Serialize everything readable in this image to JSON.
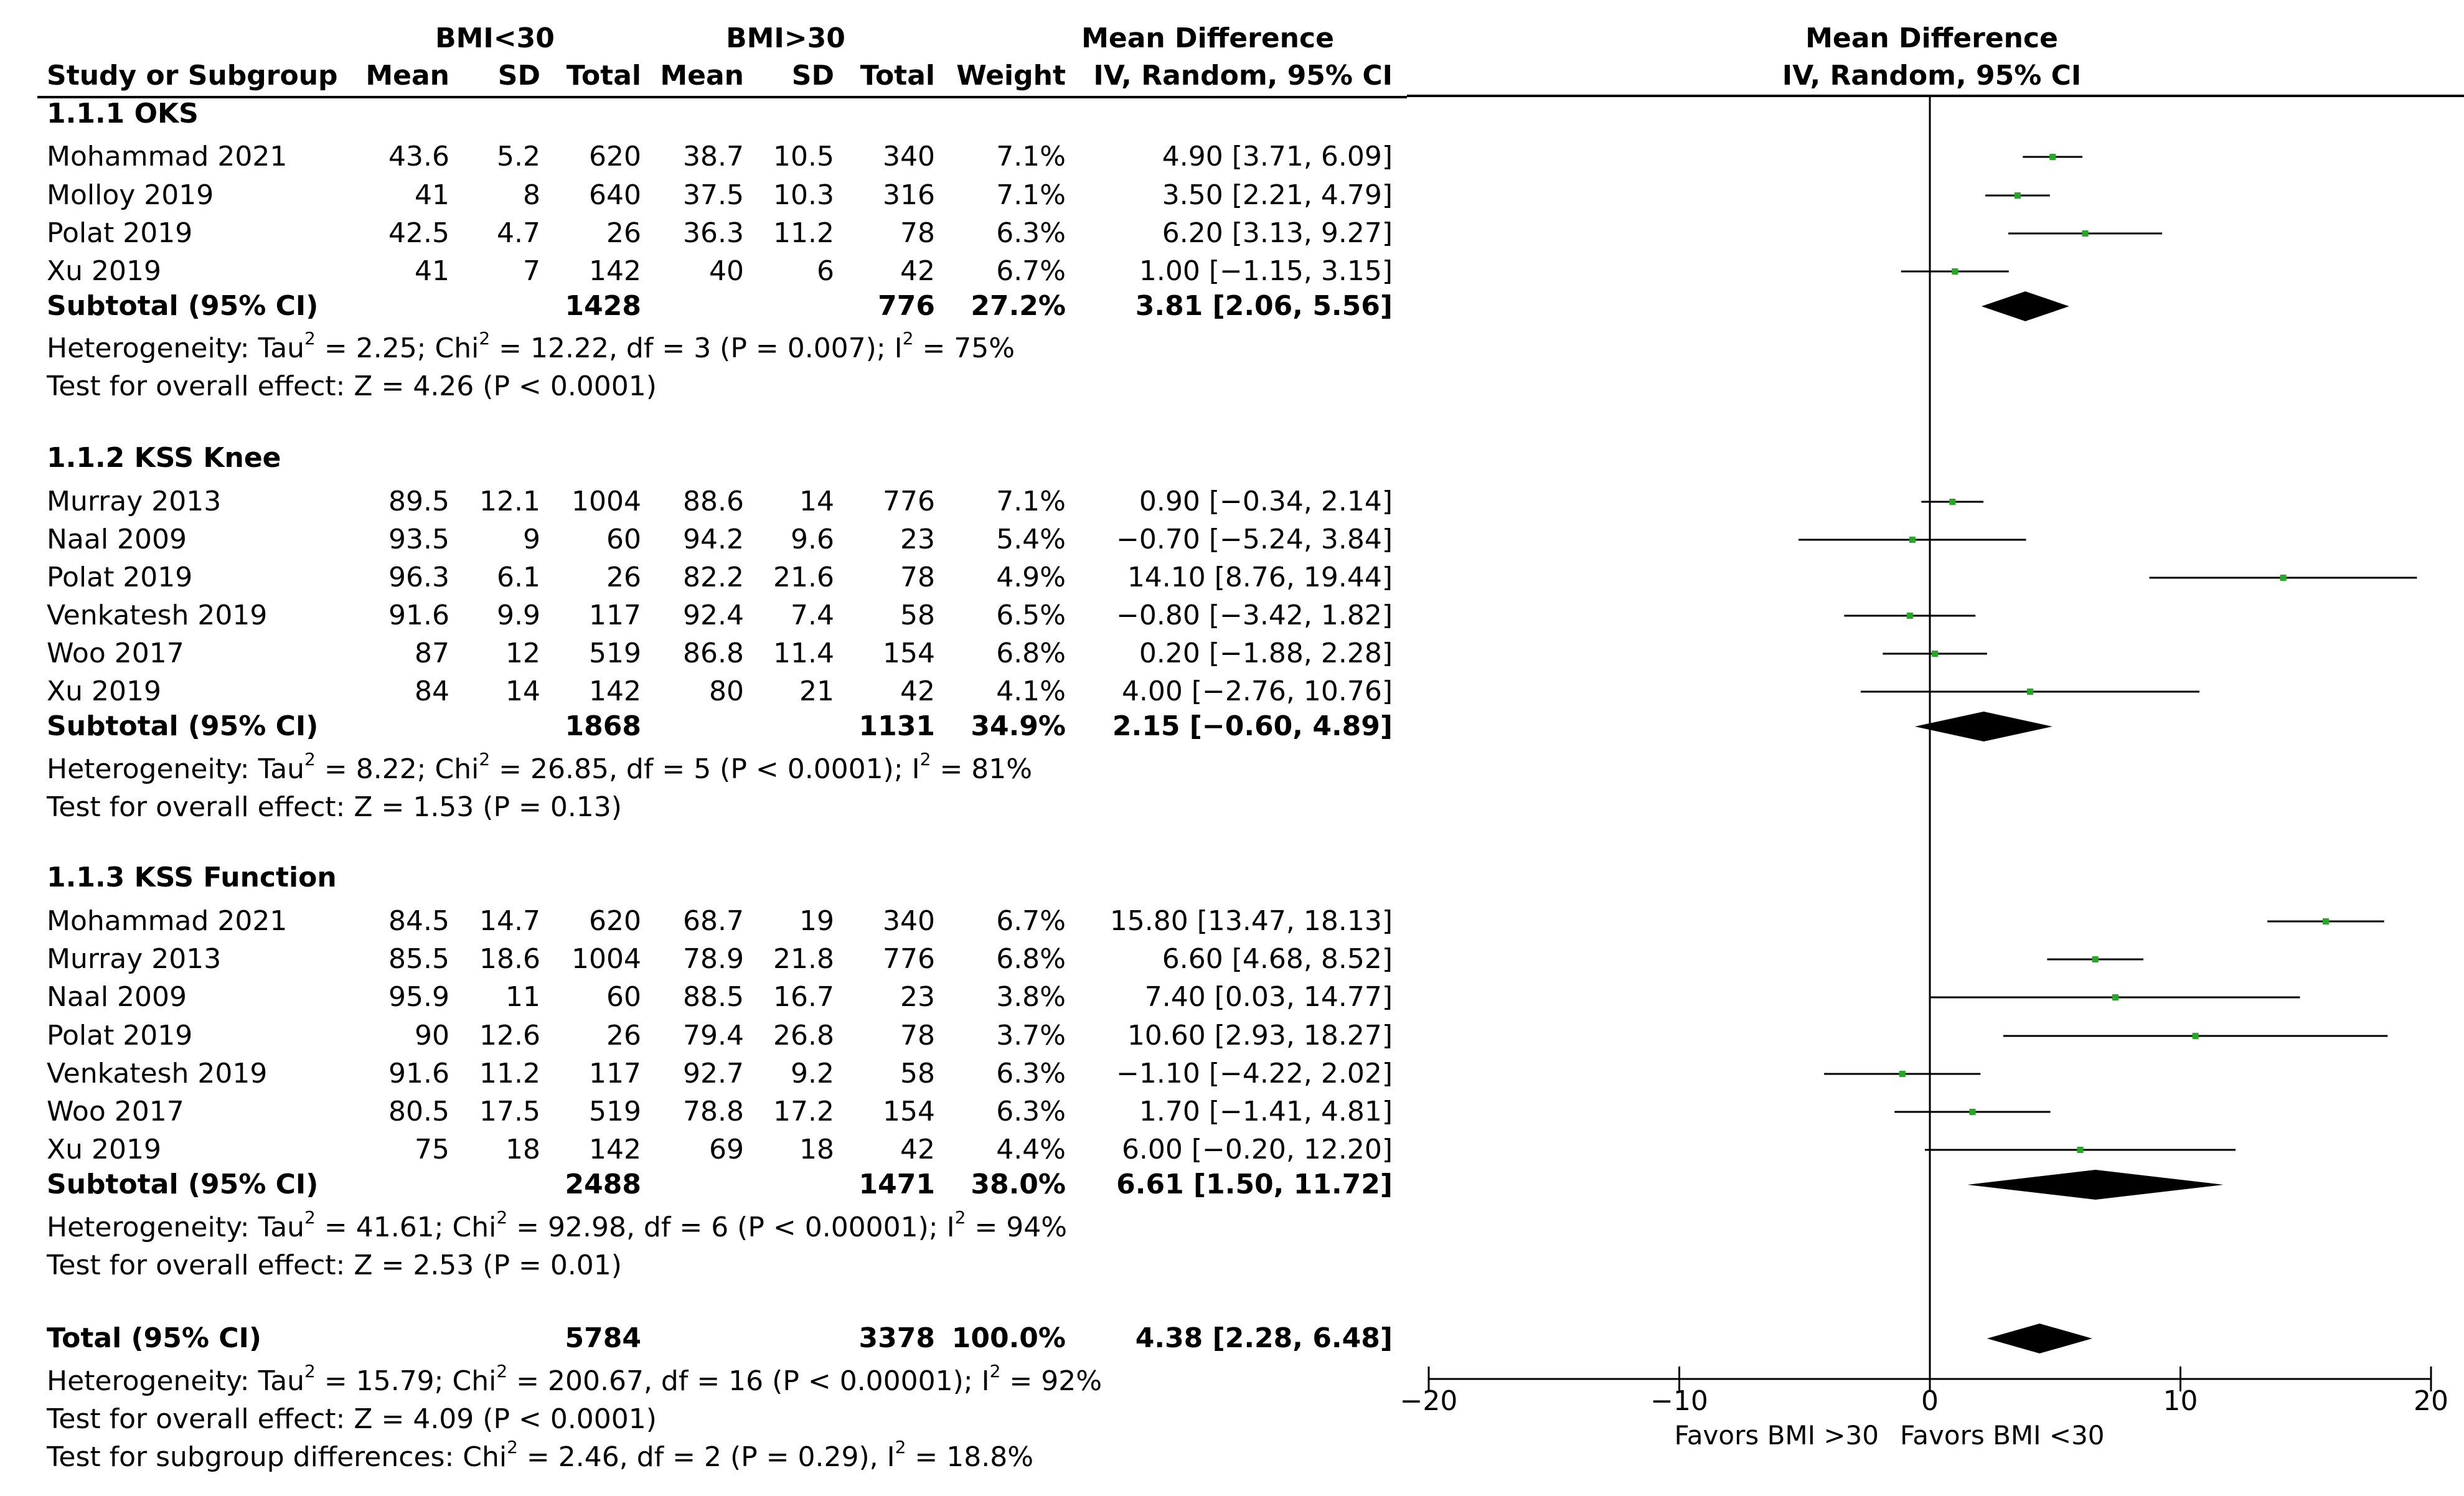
{
  "headers": {
    "group1": "BMI<30",
    "group2": "BMI>30",
    "study": "Study or Subgroup",
    "mean1": "Mean",
    "sd1": "SD",
    "total1": "Total",
    "mean2": "Mean",
    "sd2": "SD",
    "total2": "Total",
    "weight": "Weight",
    "md_title": "Mean Difference",
    "md_method": "IV, Random, 95% CI",
    "plot_title": "Mean Difference",
    "plot_method": "IV, Random, 95% CI"
  },
  "subgroups": [
    {
      "title": "1.1.1 OKS",
      "studies": [
        {
          "name": "Mohammad 2021",
          "mean1": "43.6",
          "sd1": "5.2",
          "n1": "620",
          "mean2": "38.7",
          "sd2": "10.5",
          "n2": "340",
          "weight": "7.1%",
          "ci": "4.90 [3.71, 6.09]"
        },
        {
          "name": "Molloy 2019",
          "mean1": "41",
          "sd1": "8",
          "n1": "640",
          "mean2": "37.5",
          "sd2": "10.3",
          "n2": "316",
          "weight": "7.1%",
          "ci": "3.50 [2.21, 4.79]"
        },
        {
          "name": "Polat 2019",
          "mean1": "42.5",
          "sd1": "4.7",
          "n1": "26",
          "mean2": "36.3",
          "sd2": "11.2",
          "n2": "78",
          "weight": "6.3%",
          "ci": "6.20 [3.13, 9.27]"
        },
        {
          "name": "Xu 2019",
          "mean1": "41",
          "sd1": "7",
          "n1": "142",
          "mean2": "40",
          "sd2": "6",
          "n2": "42",
          "weight": "6.7%",
          "ci": "1.00 [−1.15, 3.15]"
        }
      ],
      "subtotal": {
        "label": "Subtotal (95% CI)",
        "n1": "1428",
        "n2": "776",
        "weight": "27.2%",
        "ci": "3.81 [2.06, 5.56]"
      },
      "heterogeneity": {
        "a": "Heterogeneity: Tau",
        "b": " = 2.25; Chi",
        "c": " = 12.22, df = 3 (P = 0.007); I",
        "d": " = 75%"
      },
      "overall": "Test for overall effect: Z = 4.26 (P < 0.0001)"
    },
    {
      "title": "1.1.2 KSS Knee",
      "studies": [
        {
          "name": "Murray 2013",
          "mean1": "89.5",
          "sd1": "12.1",
          "n1": "1004",
          "mean2": "88.6",
          "sd2": "14",
          "n2": "776",
          "weight": "7.1%",
          "ci": "0.90 [−0.34, 2.14]"
        },
        {
          "name": "Naal 2009",
          "mean1": "93.5",
          "sd1": "9",
          "n1": "60",
          "mean2": "94.2",
          "sd2": "9.6",
          "n2": "23",
          "weight": "5.4%",
          "ci": "−0.70 [−5.24, 3.84]"
        },
        {
          "name": "Polat 2019",
          "mean1": "96.3",
          "sd1": "6.1",
          "n1": "26",
          "mean2": "82.2",
          "sd2": "21.6",
          "n2": "78",
          "weight": "4.9%",
          "ci": "14.10 [8.76, 19.44]"
        },
        {
          "name": "Venkatesh 2019",
          "mean1": "91.6",
          "sd1": "9.9",
          "n1": "117",
          "mean2": "92.4",
          "sd2": "7.4",
          "n2": "58",
          "weight": "6.5%",
          "ci": "−0.80 [−3.42, 1.82]"
        },
        {
          "name": "Woo 2017",
          "mean1": "87",
          "sd1": "12",
          "n1": "519",
          "mean2": "86.8",
          "sd2": "11.4",
          "n2": "154",
          "weight": "6.8%",
          "ci": "0.20 [−1.88, 2.28]"
        },
        {
          "name": "Xu 2019",
          "mean1": "84",
          "sd1": "14",
          "n1": "142",
          "mean2": "80",
          "sd2": "21",
          "n2": "42",
          "weight": "4.1%",
          "ci": "4.00 [−2.76, 10.76]"
        }
      ],
      "subtotal": {
        "label": "Subtotal (95% CI)",
        "n1": "1868",
        "n2": "1131",
        "weight": "34.9%",
        "ci": "2.15 [−0.60, 4.89]"
      },
      "heterogeneity": {
        "a": "Heterogeneity: Tau",
        "b": " = 8.22; Chi",
        "c": " = 26.85, df = 5 (P < 0.0001); I",
        "d": " = 81%"
      },
      "overall": "Test for overall effect: Z = 1.53 (P = 0.13)"
    },
    {
      "title": "1.1.3 KSS Function",
      "studies": [
        {
          "name": "Mohammad 2021",
          "mean1": "84.5",
          "sd1": "14.7",
          "n1": "620",
          "mean2": "68.7",
          "sd2": "19",
          "n2": "340",
          "weight": "6.7%",
          "ci": "15.80 [13.47, 18.13]"
        },
        {
          "name": "Murray 2013",
          "mean1": "85.5",
          "sd1": "18.6",
          "n1": "1004",
          "mean2": "78.9",
          "sd2": "21.8",
          "n2": "776",
          "weight": "6.8%",
          "ci": "6.60 [4.68, 8.52]"
        },
        {
          "name": "Naal 2009",
          "mean1": "95.9",
          "sd1": "11",
          "n1": "60",
          "mean2": "88.5",
          "sd2": "16.7",
          "n2": "23",
          "weight": "3.8%",
          "ci": "7.40 [0.03, 14.77]"
        },
        {
          "name": "Polat 2019",
          "mean1": "90",
          "sd1": "12.6",
          "n1": "26",
          "mean2": "79.4",
          "sd2": "26.8",
          "n2": "78",
          "weight": "3.7%",
          "ci": "10.60 [2.93, 18.27]"
        },
        {
          "name": "Venkatesh 2019",
          "mean1": "91.6",
          "sd1": "11.2",
          "n1": "117",
          "mean2": "92.7",
          "sd2": "9.2",
          "n2": "58",
          "weight": "6.3%",
          "ci": "−1.10 [−4.22, 2.02]"
        },
        {
          "name": "Woo 2017",
          "mean1": "80.5",
          "sd1": "17.5",
          "n1": "519",
          "mean2": "78.8",
          "sd2": "17.2",
          "n2": "154",
          "weight": "6.3%",
          "ci": "1.70 [−1.41, 4.81]"
        },
        {
          "name": "Xu 2019",
          "mean1": "75",
          "sd1": "18",
          "n1": "142",
          "mean2": "69",
          "sd2": "18",
          "n2": "42",
          "weight": "4.4%",
          "ci": "6.00 [−0.20, 12.20]"
        }
      ],
      "subtotal": {
        "label": "Subtotal (95% CI)",
        "n1": "2488",
        "n2": "1471",
        "weight": "38.0%",
        "ci": "6.61 [1.50, 11.72]"
      },
      "heterogeneity": {
        "a": "Heterogeneity: Tau",
        "b": " = 41.61; Chi",
        "c": " = 92.98, df = 6 (P < 0.00001); I",
        "d": " = 94%"
      },
      "overall": "Test for overall effect: Z = 2.53 (P = 0.01)"
    }
  ],
  "total": {
    "label": "Total (95% CI)",
    "n1": "5784",
    "n2": "3378",
    "weight": "100.0%",
    "ci": "4.38 [2.28, 6.48]",
    "heterogeneity": {
      "a": "Heterogeneity: Tau",
      "b": " = 15.79; Chi",
      "c": " = 200.67, df = 16 (P < 0.00001); I",
      "d": " = 92%"
    },
    "overall": "Test for overall effect: Z = 4.09 (P < 0.0001)",
    "subgroup_diff": {
      "a": "Test for subgroup differences: Chi",
      "b": " = 2.46, df = 2 (P = 0.29), I",
      "c": " = 18.8%"
    }
  },
  "superscript": "2",
  "chart_data": {
    "type": "forest",
    "title": "Mean Difference",
    "subtitle": "IV, Random, 95% CI",
    "xlim": [
      -20,
      20
    ],
    "ticks": [
      -20,
      -10,
      0,
      10,
      20
    ],
    "tick_labels": [
      "−20",
      "−10",
      "0",
      "10",
      "20"
    ],
    "xlabel_left": "Favors BMI >30",
    "xlabel_right": "Favors BMI <30",
    "colors": {
      "point": "#22aa22",
      "line": "#000000",
      "diamond": "#000000"
    },
    "studies": [
      {
        "subgroup": "1.1.1 OKS",
        "name": "Mohammad 2021",
        "md": 4.9,
        "lo": 3.71,
        "hi": 6.09
      },
      {
        "subgroup": "1.1.1 OKS",
        "name": "Molloy 2019",
        "md": 3.5,
        "lo": 2.21,
        "hi": 4.79
      },
      {
        "subgroup": "1.1.1 OKS",
        "name": "Polat 2019",
        "md": 6.2,
        "lo": 3.13,
        "hi": 9.27
      },
      {
        "subgroup": "1.1.1 OKS",
        "name": "Xu 2019",
        "md": 1.0,
        "lo": -1.15,
        "hi": 3.15
      },
      {
        "subgroup": "1.1.2 KSS Knee",
        "name": "Murray 2013",
        "md": 0.9,
        "lo": -0.34,
        "hi": 2.14
      },
      {
        "subgroup": "1.1.2 KSS Knee",
        "name": "Naal 2009",
        "md": -0.7,
        "lo": -5.24,
        "hi": 3.84
      },
      {
        "subgroup": "1.1.2 KSS Knee",
        "name": "Polat 2019",
        "md": 14.1,
        "lo": 8.76,
        "hi": 19.44
      },
      {
        "subgroup": "1.1.2 KSS Knee",
        "name": "Venkatesh 2019",
        "md": -0.8,
        "lo": -3.42,
        "hi": 1.82
      },
      {
        "subgroup": "1.1.2 KSS Knee",
        "name": "Woo 2017",
        "md": 0.2,
        "lo": -1.88,
        "hi": 2.28
      },
      {
        "subgroup": "1.1.2 KSS Knee",
        "name": "Xu 2019",
        "md": 4.0,
        "lo": -2.76,
        "hi": 10.76
      },
      {
        "subgroup": "1.1.3 KSS Function",
        "name": "Mohammad 2021",
        "md": 15.8,
        "lo": 13.47,
        "hi": 18.13
      },
      {
        "subgroup": "1.1.3 KSS Function",
        "name": "Murray 2013",
        "md": 6.6,
        "lo": 4.68,
        "hi": 8.52
      },
      {
        "subgroup": "1.1.3 KSS Function",
        "name": "Naal 2009",
        "md": 7.4,
        "lo": 0.03,
        "hi": 14.77
      },
      {
        "subgroup": "1.1.3 KSS Function",
        "name": "Polat 2019",
        "md": 10.6,
        "lo": 2.93,
        "hi": 18.27
      },
      {
        "subgroup": "1.1.3 KSS Function",
        "name": "Venkatesh 2019",
        "md": -1.1,
        "lo": -4.22,
        "hi": 2.02
      },
      {
        "subgroup": "1.1.3 KSS Function",
        "name": "Woo 2017",
        "md": 1.7,
        "lo": -1.41,
        "hi": 4.81
      },
      {
        "subgroup": "1.1.3 KSS Function",
        "name": "Xu 2019",
        "md": 6.0,
        "lo": -0.2,
        "hi": 12.2
      }
    ],
    "subtotals": [
      {
        "subgroup": "1.1.1 OKS",
        "md": 3.81,
        "lo": 2.06,
        "hi": 5.56
      },
      {
        "subgroup": "1.1.2 KSS Knee",
        "md": 2.15,
        "lo": -0.6,
        "hi": 4.89
      },
      {
        "subgroup": "1.1.3 KSS Function",
        "md": 6.61,
        "lo": 1.5,
        "hi": 11.72
      }
    ],
    "overall": {
      "md": 4.38,
      "lo": 2.28,
      "hi": 6.48
    }
  }
}
